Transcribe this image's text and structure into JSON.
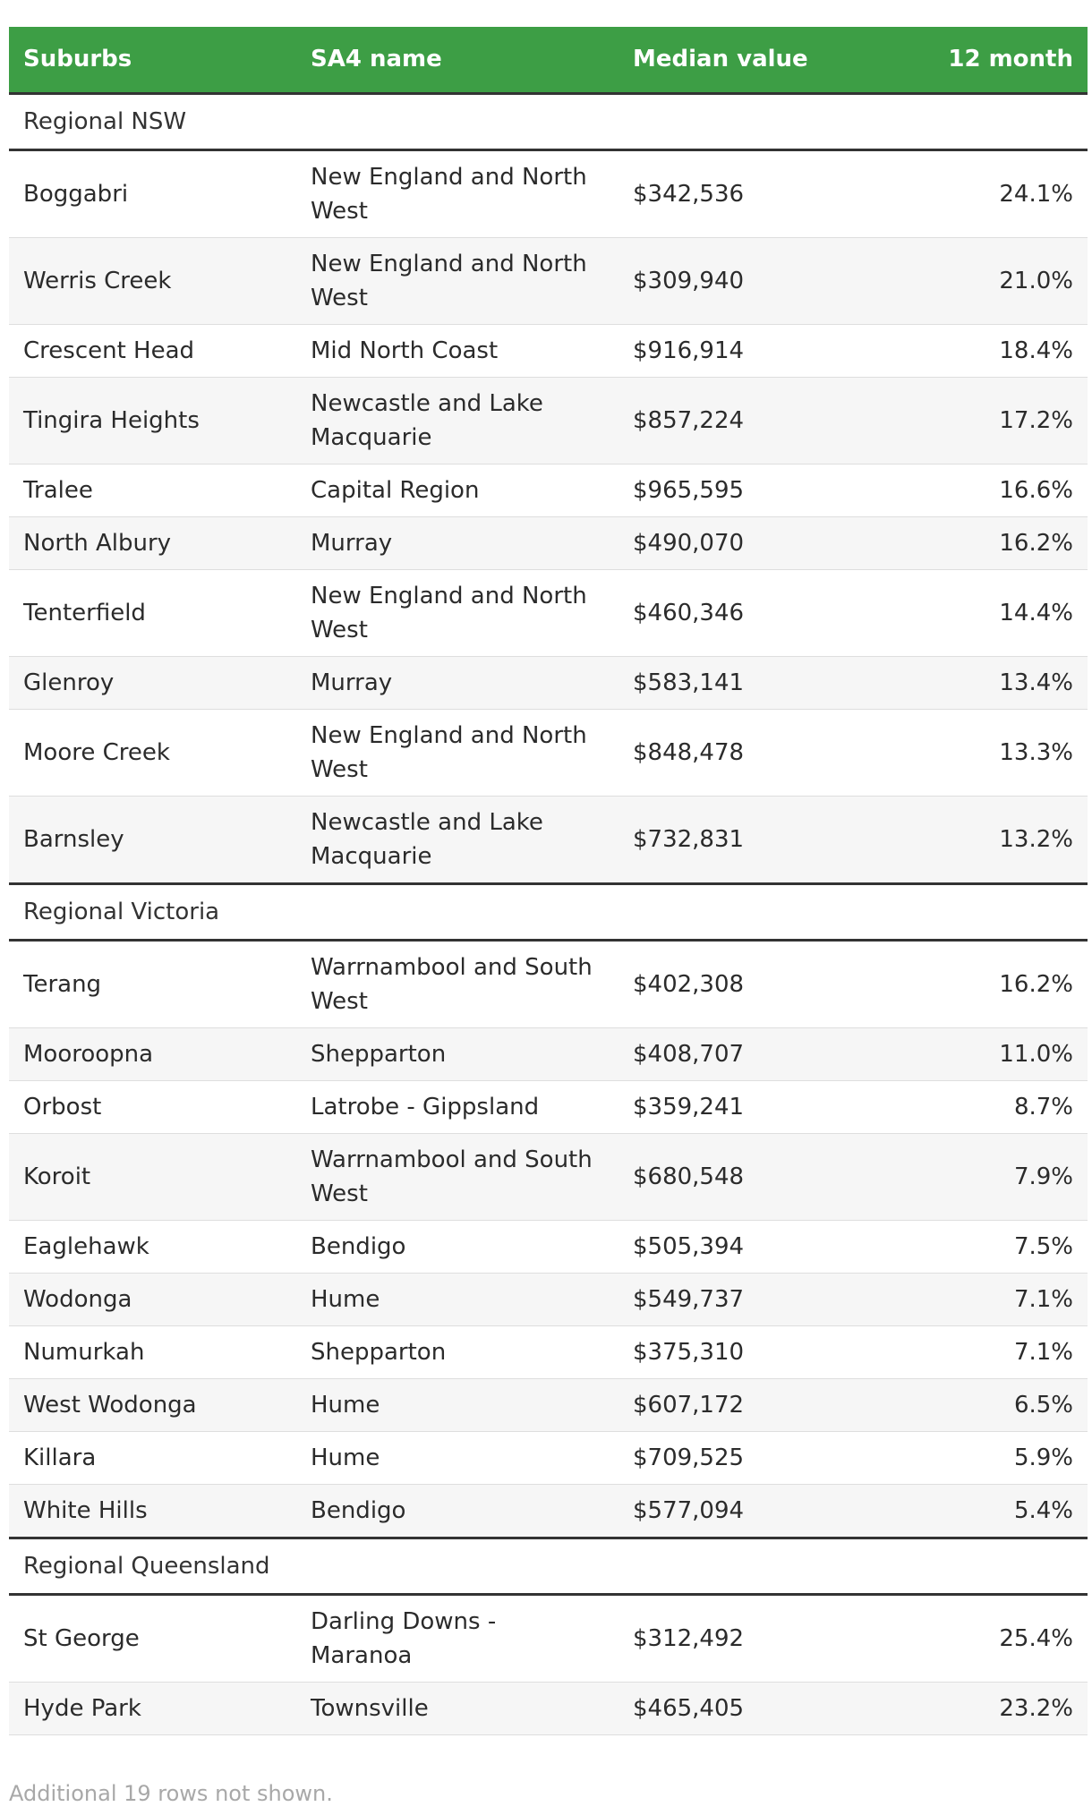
{
  "chart_data": {
    "type": "table",
    "columns": [
      "Suburbs",
      "SA4 name",
      "Median value",
      "12 month"
    ],
    "groups": [
      {
        "name": "Regional NSW",
        "rows": [
          [
            "Boggabri",
            "New England and North West",
            "$342,536",
            "24.1%"
          ],
          [
            "Werris Creek",
            "New England and North West",
            "$309,940",
            "21.0%"
          ],
          [
            "Crescent Head",
            "Mid North Coast",
            "$916,914",
            "18.4%"
          ],
          [
            "Tingira Heights",
            "Newcastle and Lake Macquarie",
            "$857,224",
            "17.2%"
          ],
          [
            "Tralee",
            "Capital Region",
            "$965,595",
            "16.6%"
          ],
          [
            "North Albury",
            "Murray",
            "$490,070",
            "16.2%"
          ],
          [
            "Tenterfield",
            "New England and North West",
            "$460,346",
            "14.4%"
          ],
          [
            "Glenroy",
            "Murray",
            "$583,141",
            "13.4%"
          ],
          [
            "Moore Creek",
            "New England and North West",
            "$848,478",
            "13.3%"
          ],
          [
            "Barnsley",
            "Newcastle and Lake Macquarie",
            "$732,831",
            "13.2%"
          ]
        ]
      },
      {
        "name": "Regional Victoria",
        "rows": [
          [
            "Terang",
            "Warrnambool and South West",
            "$402,308",
            "16.2%"
          ],
          [
            "Mooroopna",
            "Shepparton",
            "$408,707",
            "11.0%"
          ],
          [
            "Orbost",
            "Latrobe - Gippsland",
            "$359,241",
            "8.7%"
          ],
          [
            "Koroit",
            "Warrnambool and South West",
            "$680,548",
            "7.9%"
          ],
          [
            "Eaglehawk",
            "Bendigo",
            "$505,394",
            "7.5%"
          ],
          [
            "Wodonga",
            "Hume",
            "$549,737",
            "7.1%"
          ],
          [
            "Numurkah",
            "Shepparton",
            "$375,310",
            "7.1%"
          ],
          [
            "West Wodonga",
            "Hume",
            "$607,172",
            "6.5%"
          ],
          [
            "Killara",
            "Hume",
            "$709,525",
            "5.9%"
          ],
          [
            "White Hills",
            "Bendigo",
            "$577,094",
            "5.4%"
          ]
        ]
      },
      {
        "name": "Regional Queensland",
        "rows": [
          [
            "St George",
            "Darling Downs - Maranoa",
            "$312,492",
            "25.4%"
          ],
          [
            "Hyde Park",
            "Townsville",
            "$465,405",
            "23.2%"
          ]
        ]
      }
    ],
    "header_color": "#3d9e45",
    "footnote": "Additional 19 rows not shown."
  }
}
